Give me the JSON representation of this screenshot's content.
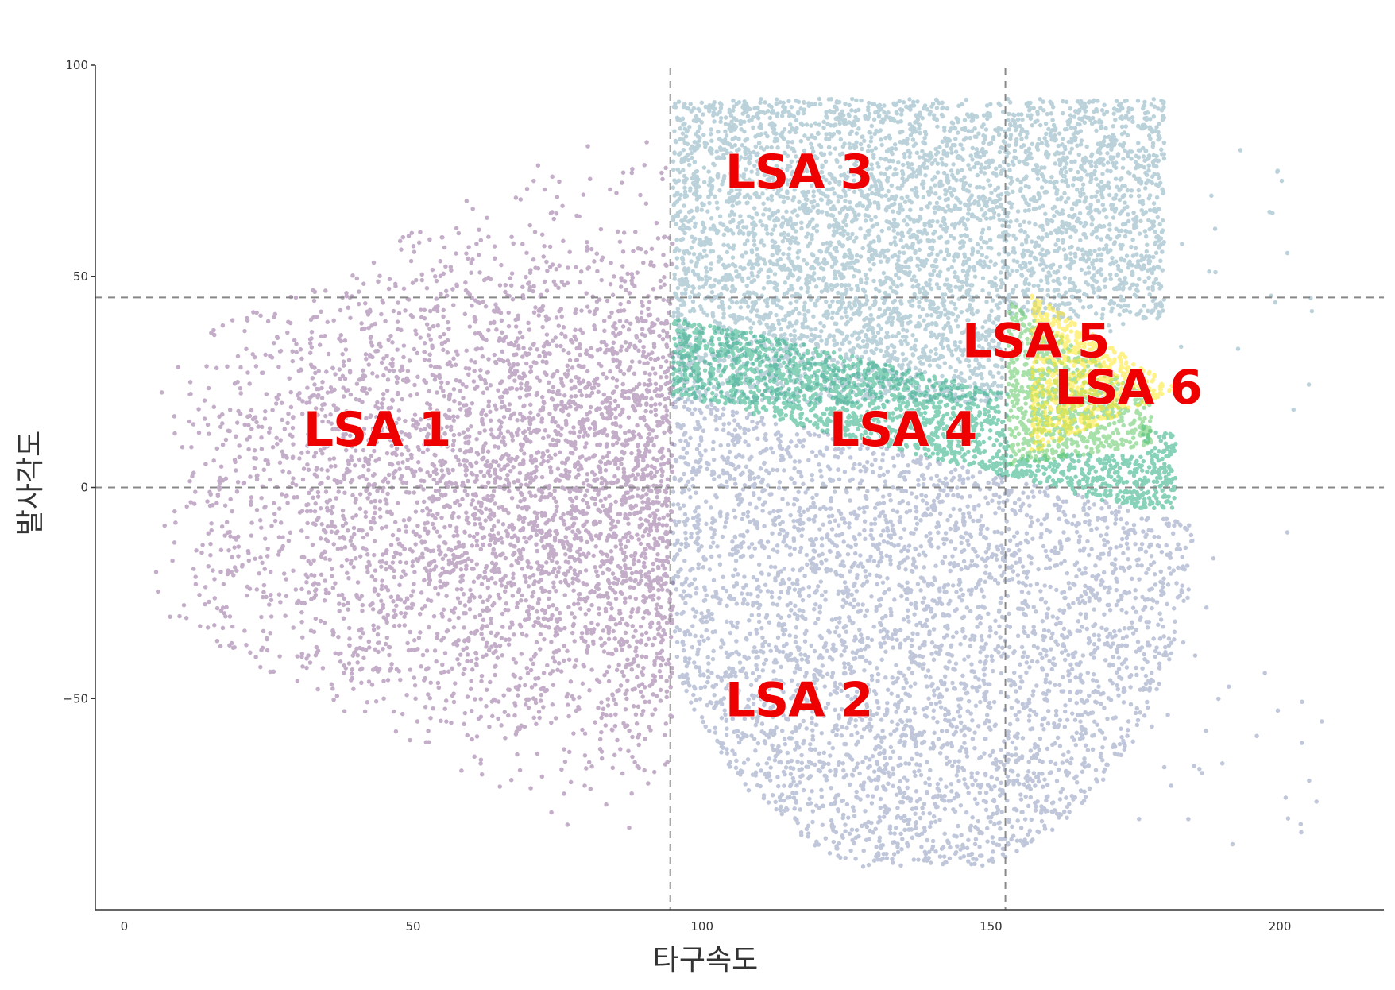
{
  "chart_data": {
    "type": "scatter",
    "xlabel": "타구속도",
    "ylabel": "발사각도",
    "xlim": [
      -5,
      218
    ],
    "ylim": [
      -100,
      100
    ],
    "x_ticks": [
      0,
      50,
      100,
      150,
      200
    ],
    "y_ticks": [
      -50,
      0,
      50,
      100
    ],
    "x_tick_labels": [
      "0",
      "50",
      "100",
      "150",
      "200"
    ],
    "y_tick_labels": [
      "−50",
      "0",
      "50",
      "100"
    ],
    "grid": false,
    "reference_lines": {
      "vertical": [
        94.5,
        152.5
      ],
      "horizontal": [
        0,
        45
      ]
    },
    "series": [
      {
        "name": "LSA 1",
        "color": "#440154",
        "dot_count": 4200,
        "region": {
          "x_range": [
            5,
            95
          ],
          "y_range": [
            -90,
            90
          ],
          "density_center_x": 88
        }
      },
      {
        "name": "LSA 2",
        "color": "#3b528b",
        "dot_count": 15000,
        "region": {
          "x_range": [
            95,
            185
          ],
          "y_range": [
            -90,
            22
          ],
          "upper_edge_line": {
            "x": [
              95,
              175
            ],
            "y": [
              22,
              -5
            ]
          }
        }
      },
      {
        "name": "LSA 3",
        "color": "#2c728e",
        "dot_count": 11000,
        "region": {
          "x_range": [
            95,
            180
          ],
          "y_range": [
            20,
            92
          ]
        }
      },
      {
        "name": "LSA 4",
        "color": "#27ad81",
        "dot_count": 7000,
        "region": {
          "x_range": [
            95,
            182
          ],
          "y_range": [
            -5,
            40
          ]
        }
      },
      {
        "name": "LSA 5",
        "color": "#5ec962",
        "dot_count": 800,
        "region": {
          "x_range": [
            153,
            178
          ],
          "y_range": [
            5,
            44
          ]
        }
      },
      {
        "name": "LSA 6",
        "color": "#fde725",
        "dot_count": 700,
        "region": {
          "x_range": [
            157,
            183
          ],
          "y_range": [
            8,
            46
          ]
        }
      }
    ],
    "annotations": [
      {
        "text": "LSA 1",
        "x": 31,
        "y": 14
      },
      {
        "text": "LSA 2",
        "x": 104,
        "y": -50
      },
      {
        "text": "LSA 3",
        "x": 104,
        "y": 75
      },
      {
        "text": "LSA 4",
        "x": 122,
        "y": 14
      },
      {
        "text": "LSA 5",
        "x": 145,
        "y": 35
      },
      {
        "text": "LSA 6",
        "x": 161,
        "y": 24
      }
    ],
    "annotation_color": "#ee0000"
  }
}
